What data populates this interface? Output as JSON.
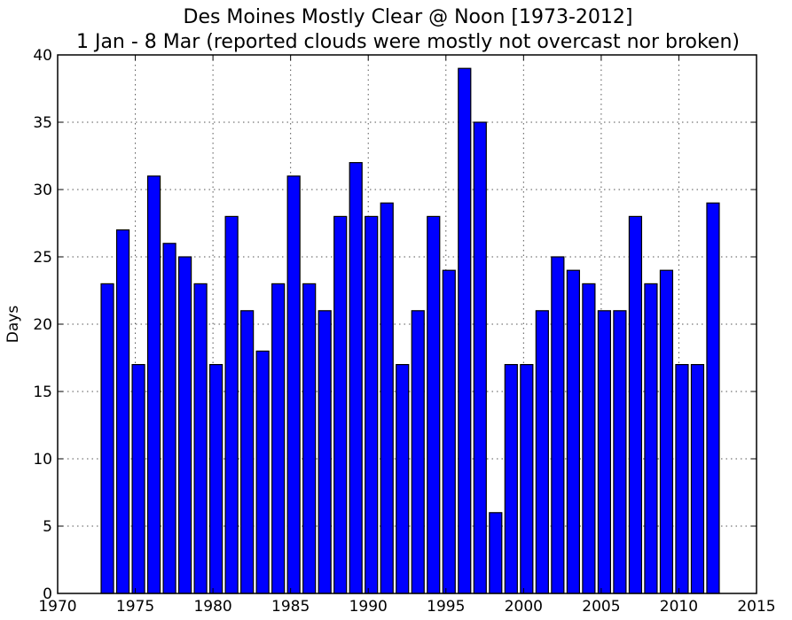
{
  "chart_data": {
    "type": "bar",
    "title": "Des Moines Mostly Clear @ Noon [1973-2012]",
    "subtitle": "1 Jan - 8 Mar (reported clouds were mostly not overcast nor broken)",
    "xlabel": "",
    "ylabel": "Days",
    "x": [
      1973,
      1974,
      1975,
      1976,
      1977,
      1978,
      1979,
      1980,
      1981,
      1982,
      1983,
      1984,
      1985,
      1986,
      1987,
      1988,
      1989,
      1990,
      1991,
      1992,
      1993,
      1994,
      1995,
      1996,
      1997,
      1998,
      1999,
      2000,
      2001,
      2002,
      2003,
      2004,
      2005,
      2006,
      2007,
      2008,
      2009,
      2010,
      2011,
      2012
    ],
    "values": [
      23,
      27,
      17,
      31,
      26,
      25,
      23,
      17,
      28,
      21,
      18,
      23,
      31,
      23,
      21,
      28,
      32,
      28,
      29,
      17,
      21,
      28,
      24,
      39,
      35,
      6,
      17,
      17,
      21,
      25,
      24,
      23,
      21,
      21,
      28,
      23,
      24,
      17,
      17,
      29
    ],
    "xlim": [
      1970,
      2015
    ],
    "ylim": [
      0,
      40
    ],
    "xticks": [
      "1970",
      "1975",
      "1980",
      "1985",
      "1990",
      "1995",
      "2000",
      "2005",
      "2010",
      "2015"
    ],
    "yticks": [
      "0",
      "5",
      "10",
      "15",
      "20",
      "25",
      "30",
      "35",
      "40"
    ],
    "grid": true,
    "bar_color": "#0000ff",
    "bar_edge_color": "#000000"
  }
}
